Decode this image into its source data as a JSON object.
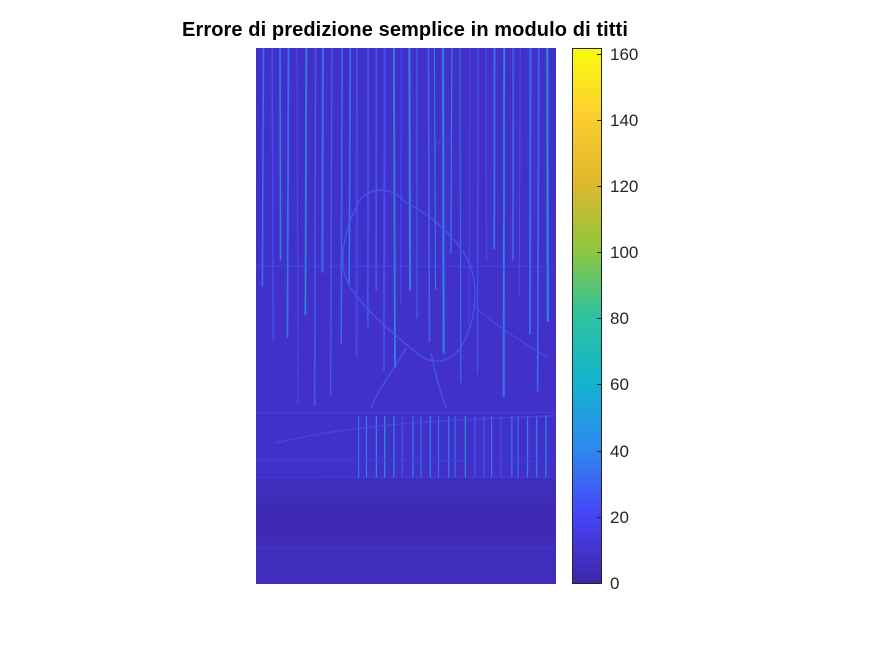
{
  "chart_data": {
    "type": "heatmap",
    "title": "Errore di predizione semplice in modulo di titti",
    "colorbar": {
      "min": 0,
      "max": 162,
      "ticks": [
        0,
        20,
        40,
        60,
        80,
        100,
        120,
        140,
        160
      ],
      "tick_labels": [
        "0",
        "20",
        "40",
        "60",
        "80",
        "100",
        "120",
        "140",
        "160"
      ],
      "colormap": "parula",
      "colormap_stops": [
        "#3e26a8",
        "#4743f8",
        "#2f88f0",
        "#12b4cd",
        "#2ec3a0",
        "#8fc63e",
        "#e0b82c",
        "#fcce2e",
        "#f9fb0e"
      ]
    },
    "background_value_estimate": 8
  }
}
